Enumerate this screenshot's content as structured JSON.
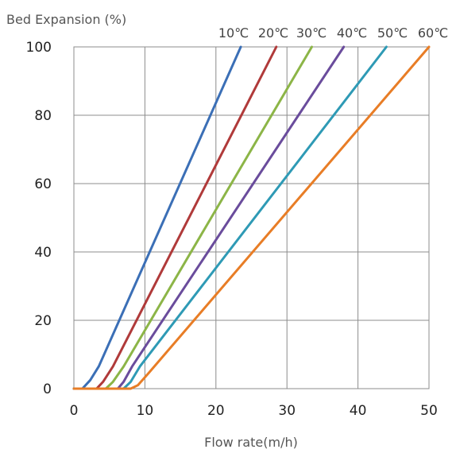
{
  "chart_data": {
    "type": "line",
    "title": "",
    "xlabel": "Flow rate(m/h)",
    "ylabel": "Bed Expansion (%)",
    "xlim": [
      0,
      50
    ],
    "ylim": [
      0,
      100
    ],
    "x_ticks": [
      0,
      10,
      20,
      30,
      40,
      50
    ],
    "y_ticks": [
      0,
      20,
      40,
      60,
      80,
      100
    ],
    "grid": true,
    "legend": "labels above top-right of plot",
    "series": [
      {
        "name": "10℃",
        "color": "#3b6fb6",
        "points": [
          [
            0,
            0
          ],
          [
            1.2,
            0
          ],
          [
            2.3,
            2.5
          ],
          [
            3.5,
            6.5
          ],
          [
            23.5,
            100
          ]
        ]
      },
      {
        "name": "20℃",
        "color": "#b03a3a",
        "points": [
          [
            0,
            0
          ],
          [
            3.2,
            0
          ],
          [
            4.1,
            2
          ],
          [
            5.5,
            6.5
          ],
          [
            28.5,
            100
          ]
        ]
      },
      {
        "name": "30℃",
        "color": "#8cb547",
        "points": [
          [
            0,
            0
          ],
          [
            4.5,
            0
          ],
          [
            5.5,
            2
          ],
          [
            7,
            6.5
          ],
          [
            33.5,
            100
          ]
        ]
      },
      {
        "name": "40℃",
        "color": "#6a4c9c",
        "points": [
          [
            0,
            0
          ],
          [
            6.2,
            0
          ],
          [
            7,
            2
          ],
          [
            8.2,
            6.5
          ],
          [
            38,
            100
          ]
        ]
      },
      {
        "name": "50℃",
        "color": "#2e9ab5",
        "points": [
          [
            0,
            0
          ],
          [
            7,
            0
          ],
          [
            8,
            2
          ],
          [
            9.3,
            6.5
          ],
          [
            44,
            100
          ]
        ]
      },
      {
        "name": "60℃",
        "color": "#e87d26",
        "points": [
          [
            0,
            0
          ],
          [
            8,
            0
          ],
          [
            9,
            1
          ],
          [
            10.5,
            4.5
          ],
          [
            50,
            100
          ]
        ]
      }
    ]
  }
}
